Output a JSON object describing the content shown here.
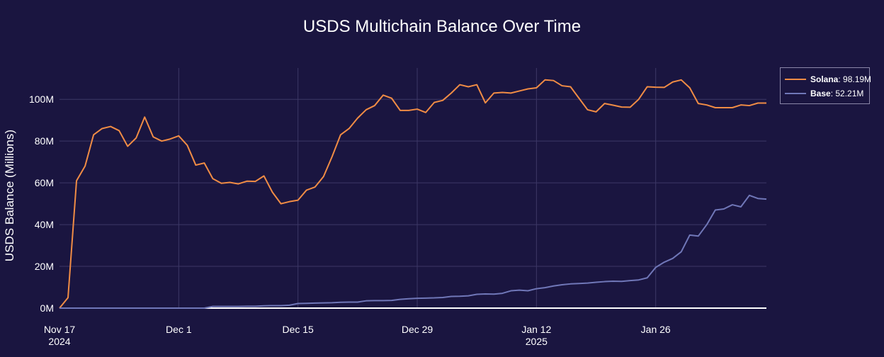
{
  "chart_data": {
    "type": "line",
    "title": "USDS Multichain Balance Over Time",
    "xlabel": "",
    "ylabel": "USDS Balance (Millions)",
    "x_ticks": [
      {
        "date": "2024-11-17",
        "label": "Nov 17",
        "sublabel": "2024"
      },
      {
        "date": "2024-12-01",
        "label": "Dec 1",
        "sublabel": ""
      },
      {
        "date": "2024-12-15",
        "label": "Dec 15",
        "sublabel": ""
      },
      {
        "date": "2024-12-29",
        "label": "Dec 29",
        "sublabel": ""
      },
      {
        "date": "2025-01-12",
        "label": "Jan 12",
        "sublabel": "2025"
      },
      {
        "date": "2025-01-26",
        "label": "Jan 26",
        "sublabel": ""
      }
    ],
    "y_ticks": [
      {
        "value": 0,
        "label": "0M"
      },
      {
        "value": 20,
        "label": "20M"
      },
      {
        "value": 40,
        "label": "40M"
      },
      {
        "value": 60,
        "label": "60M"
      },
      {
        "value": 80,
        "label": "80M"
      },
      {
        "value": 100,
        "label": "100M"
      }
    ],
    "xlim": [
      "2024-11-17",
      "2025-02-08"
    ],
    "ylim": [
      0,
      115
    ],
    "grid": true,
    "legend_position": "top-right",
    "x": [
      "2024-11-17",
      "2024-11-18",
      "2024-11-19",
      "2024-11-20",
      "2024-11-21",
      "2024-11-22",
      "2024-11-23",
      "2024-11-24",
      "2024-11-25",
      "2024-11-26",
      "2024-11-27",
      "2024-11-28",
      "2024-11-29",
      "2024-11-30",
      "2024-12-01",
      "2024-12-02",
      "2024-12-03",
      "2024-12-04",
      "2024-12-05",
      "2024-12-06",
      "2024-12-07",
      "2024-12-08",
      "2024-12-09",
      "2024-12-10",
      "2024-12-11",
      "2024-12-12",
      "2024-12-13",
      "2024-12-14",
      "2024-12-15",
      "2024-12-16",
      "2024-12-17",
      "2024-12-18",
      "2024-12-19",
      "2024-12-20",
      "2024-12-21",
      "2024-12-22",
      "2024-12-23",
      "2024-12-24",
      "2024-12-25",
      "2024-12-26",
      "2024-12-27",
      "2024-12-28",
      "2024-12-29",
      "2024-12-30",
      "2024-12-31",
      "2025-01-01",
      "2025-01-02",
      "2025-01-03",
      "2025-01-04",
      "2025-01-05",
      "2025-01-06",
      "2025-01-07",
      "2025-01-08",
      "2025-01-09",
      "2025-01-10",
      "2025-01-11",
      "2025-01-12",
      "2025-01-13",
      "2025-01-14",
      "2025-01-15",
      "2025-01-16",
      "2025-01-17",
      "2025-01-18",
      "2025-01-19",
      "2025-01-20",
      "2025-01-21",
      "2025-01-22",
      "2025-01-23",
      "2025-01-24",
      "2025-01-25",
      "2025-01-26",
      "2025-01-27",
      "2025-01-28",
      "2025-01-29",
      "2025-01-30",
      "2025-01-31",
      "2025-02-01",
      "2025-02-02",
      "2025-02-03",
      "2025-02-04",
      "2025-02-05",
      "2025-02-06",
      "2025-02-07",
      "2025-02-08"
    ],
    "series": [
      {
        "name": "Solana",
        "color": "#f08c45",
        "last_label": "98.19M",
        "values": [
          0,
          5,
          61,
          68,
          83,
          86,
          87,
          85,
          77.5,
          81.5,
          91.5,
          82,
          80,
          81,
          82.5,
          78,
          68.5,
          69.5,
          62,
          59.8,
          60.2,
          59.5,
          60.8,
          60.7,
          63.3,
          55.5,
          50,
          51,
          51.7,
          56.5,
          58,
          63,
          72.5,
          83,
          86,
          91,
          95,
          97,
          102,
          100.5,
          94.7,
          94.7,
          95.3,
          93.7,
          98.5,
          99.5,
          103,
          107,
          106,
          107,
          98.3,
          103,
          103.3,
          103,
          104,
          105,
          105.5,
          109.3,
          109,
          106.5,
          106,
          100.5,
          95,
          94,
          98,
          97.2,
          96.3,
          96.2,
          100,
          106,
          105.8,
          105.7,
          108.3,
          109.3,
          105.5,
          98,
          97.3,
          96,
          96,
          96,
          97.3,
          97,
          98.2,
          98.19
        ]
      },
      {
        "name": "Base",
        "color": "#7077b8",
        "last_label": "52.21M",
        "values": [
          0,
          0,
          0,
          0,
          0,
          0,
          0,
          0,
          0,
          0,
          0,
          0,
          0,
          0,
          0,
          0,
          0,
          0,
          0.8,
          0.8,
          0.8,
          0.8,
          0.9,
          0.9,
          1.1,
          1.2,
          1.2,
          1.4,
          2.2,
          2.3,
          2.4,
          2.5,
          2.6,
          2.8,
          2.9,
          2.9,
          3.5,
          3.6,
          3.6,
          3.7,
          4.2,
          4.5,
          4.7,
          4.8,
          4.9,
          5.1,
          5.6,
          5.7,
          5.9,
          6.6,
          6.8,
          6.7,
          7.1,
          8.3,
          8.6,
          8.3,
          9.3,
          9.8,
          10.6,
          11.2,
          11.6,
          11.8,
          12,
          12.4,
          12.7,
          12.9,
          12.8,
          13.2,
          13.5,
          14.5,
          19.5,
          22,
          23.8,
          27,
          35,
          34.5,
          40,
          47,
          47.5,
          49.5,
          48.5,
          54,
          52.5,
          52.21
        ]
      }
    ]
  }
}
